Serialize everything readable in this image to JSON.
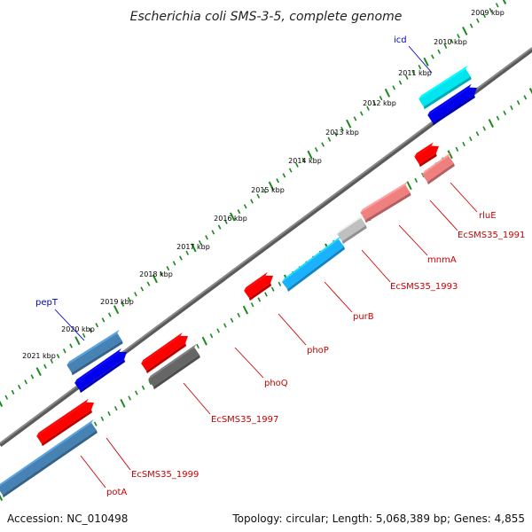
{
  "title": "Escherichia coli SMS-3-5, complete genome",
  "footer": {
    "accession": "Accession: NC_010498",
    "summary": "Topology: circular; Length: 5,068,389 bp; Genes: 4,855"
  },
  "colors": {
    "backbone": "#8a8a8a",
    "ticks": "#1a8a1a",
    "label_red": "#cc0000",
    "label_blue": "#0000cc"
  },
  "kbp_labels": [
    "2009 kbp",
    "2010 kbp",
    "2011 kbp",
    "2012 kbp",
    "2013 kbp",
    "2014 kbp",
    "2015 kbp",
    "2016 kbp",
    "2017 kbp",
    "2018 kbp",
    "2019 kbp",
    "2020 kbp",
    "2021 kbp"
  ],
  "genes": [
    {
      "name": "icd",
      "color": "#00e5ee",
      "lane": "outer-upper",
      "labeled": true
    },
    {
      "name": "",
      "color": "#0000ee",
      "lane": "outer-lower",
      "labeled": false
    },
    {
      "name": "rluE",
      "color": "#f08080",
      "lane": "inner-lower",
      "labeled": true
    },
    {
      "name": "EcSMS35_1991",
      "color": "#ff0000",
      "lane": "inner-upper",
      "labeled": true
    },
    {
      "name": "mnmA",
      "color": "#f08080",
      "lane": "inner-lower",
      "labeled": true
    },
    {
      "name": "EcSMS35_1993",
      "color": "#c0c0c0",
      "lane": "inner-lower",
      "labeled": true
    },
    {
      "name": "purB",
      "color": "#1ab2ff",
      "lane": "inner-lower",
      "labeled": true
    },
    {
      "name": "phoP",
      "color": "#ff0000",
      "lane": "inner-upper",
      "labeled": true
    },
    {
      "name": "phoQ",
      "color": "#ff0000",
      "lane": "inner-upper",
      "labeled": true
    },
    {
      "name": "EcSMS35_1997",
      "color": "#666666",
      "lane": "inner-lower",
      "labeled": true
    },
    {
      "name": "EcSMS35_1999",
      "color": "#ff0000",
      "lane": "inner-upper",
      "labeled": true
    },
    {
      "name": "potA",
      "color": "#4682b4",
      "lane": "inner-lower",
      "labeled": true
    },
    {
      "name": "pepT",
      "color": "#4682b4",
      "lane": "outer-upper",
      "labeled": true
    },
    {
      "name": "",
      "color": "#0000ee",
      "lane": "outer-lower",
      "labeled": false
    }
  ]
}
